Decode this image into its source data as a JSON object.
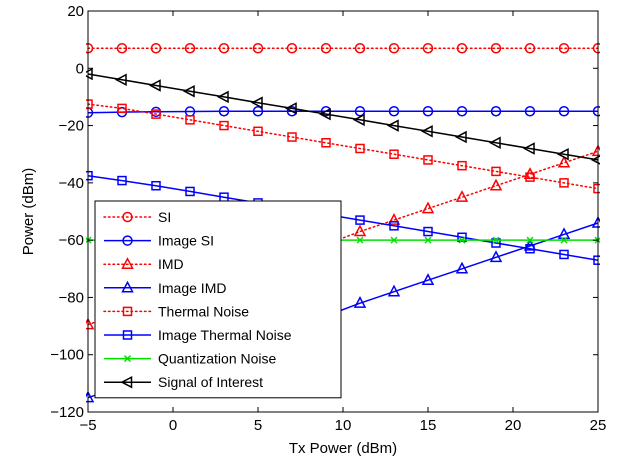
{
  "chart_data": {
    "type": "line",
    "title": "",
    "xlabel": "Tx Power (dBm)",
    "ylabel": "Power (dBm)",
    "xlim": [
      -5,
      25
    ],
    "ylim": [
      -120,
      20
    ],
    "xticks": [
      -5,
      0,
      5,
      10,
      15,
      20,
      25
    ],
    "yticks": [
      -120,
      -100,
      -80,
      -60,
      -40,
      -20,
      0,
      20
    ],
    "grid": false,
    "legend_position": "bottom-left",
    "x": [
      -5,
      -3,
      -1,
      1,
      3,
      5,
      7,
      9,
      11,
      13,
      15,
      17,
      19,
      21,
      23,
      25
    ],
    "series": [
      {
        "name": "SI",
        "color": "#ff0000",
        "line_style": "dotted",
        "marker": "circle",
        "values": [
          7,
          7,
          7,
          7,
          7,
          7,
          7,
          7,
          7,
          7,
          7,
          7,
          7,
          7,
          7,
          7
        ]
      },
      {
        "name": "Image SI",
        "color": "#0000ff",
        "line_style": "solid",
        "marker": "circle",
        "values": [
          -15.5,
          -15.3,
          -15.2,
          -15.1,
          -15,
          -15,
          -15,
          -15,
          -15,
          -15,
          -15,
          -15,
          -15,
          -15,
          -15,
          -15
        ]
      },
      {
        "name": "IMD",
        "color": "#ff0000",
        "line_style": "dotted",
        "marker": "triangle",
        "values": [
          -89.5,
          -85.5,
          -81.5,
          -77.5,
          -73.5,
          -69.5,
          -65.5,
          -61.5,
          -57,
          -53,
          -49,
          -45,
          -41,
          -37,
          -33,
          -29
        ]
      },
      {
        "name": "Image IMD",
        "color": "#0000ff",
        "line_style": "solid",
        "marker": "triangle",
        "values": [
          -115,
          -111,
          -107,
          -103,
          -98.5,
          -94.5,
          -90.5,
          -86.5,
          -82,
          -78,
          -74,
          -70,
          -66,
          -62,
          -58,
          -54
        ]
      },
      {
        "name": "Thermal Noise",
        "color": "#ff0000",
        "line_style": "dotted",
        "marker": "square",
        "values": [
          -12.5,
          -14,
          -16,
          -18,
          -20,
          -22,
          -24,
          -26,
          -28,
          -30,
          -32,
          -34,
          -36,
          -38,
          -40,
          -42
        ]
      },
      {
        "name": "Image Thermal Noise",
        "color": "#0000ff",
        "line_style": "solid",
        "marker": "square",
        "values": [
          -37.5,
          -39.2,
          -41,
          -43,
          -45,
          -47,
          -49,
          -51,
          -53,
          -55,
          -57,
          -59,
          -61,
          -63,
          -65,
          -67
        ]
      },
      {
        "name": "Quantization Noise",
        "color": "#00e000",
        "line_style": "solid",
        "marker": "x",
        "values": [
          -60,
          -60,
          -60,
          -60,
          -60,
          -60,
          -60,
          -60,
          -60,
          -60,
          -60,
          -60,
          -60,
          -60,
          -60,
          -60
        ]
      },
      {
        "name": "Signal of Interest",
        "color": "#000000",
        "line_style": "solid",
        "marker": "triangle-left",
        "values": [
          -2,
          -4,
          -6,
          -8,
          -10,
          -12,
          -14,
          -16,
          -18,
          -20,
          -22,
          -24,
          -26,
          -28,
          -30,
          -32
        ]
      }
    ]
  }
}
